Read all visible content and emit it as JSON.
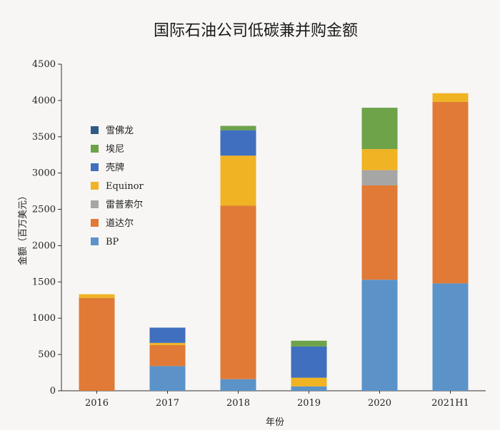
{
  "chart_data": {
    "type": "bar",
    "stacked": true,
    "title": "国际石油公司低碳兼并购金额",
    "xlabel": "年份",
    "ylabel": "金额（百万美元）",
    "ylim": [
      0,
      4500
    ],
    "yticks": [
      0,
      500,
      1000,
      1500,
      2000,
      2500,
      3000,
      3500,
      4000,
      4500
    ],
    "categories": [
      "2016",
      "2017",
      "2018",
      "2019",
      "2020",
      "2021H1"
    ],
    "legend_position": "top-left",
    "grid": false,
    "series": [
      {
        "name": "BP",
        "color": "#5b93c9",
        "values": [
          0,
          340,
          160,
          60,
          1530,
          1480
        ]
      },
      {
        "name": "道达尔",
        "color": "#e07a36",
        "values": [
          1280,
          290,
          2390,
          0,
          1300,
          2500
        ]
      },
      {
        "name": "雷普索尔",
        "color": "#a6a6a6",
        "values": [
          0,
          0,
          0,
          0,
          210,
          0
        ]
      },
      {
        "name": "Equinor",
        "color": "#f0b323",
        "values": [
          50,
          30,
          690,
          120,
          290,
          120
        ]
      },
      {
        "name": "壳牌",
        "color": "#3f6fbe",
        "values": [
          0,
          210,
          350,
          430,
          0,
          0
        ]
      },
      {
        "name": "埃尼",
        "color": "#6ea34a",
        "values": [
          0,
          0,
          60,
          80,
          570,
          0
        ]
      },
      {
        "name": "雪佛龙",
        "color": "#2e5a87",
        "values": [
          0,
          0,
          0,
          0,
          0,
          0
        ]
      }
    ],
    "legend_order": [
      "雪佛龙",
      "埃尼",
      "壳牌",
      "Equinor",
      "雷普索尔",
      "道达尔",
      "BP"
    ]
  }
}
